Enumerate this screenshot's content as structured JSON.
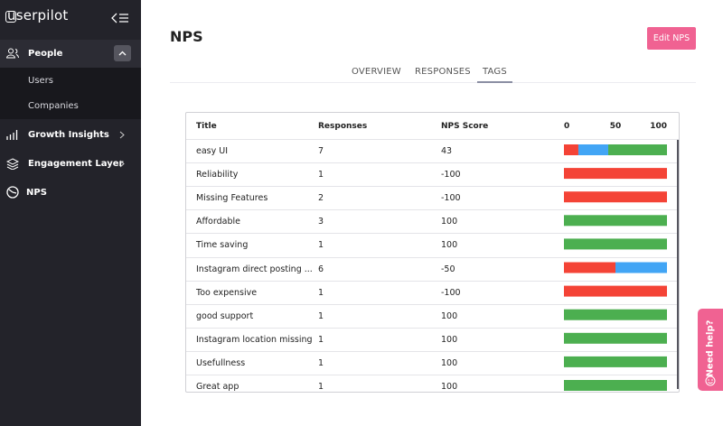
{
  "sidebar": {
    "logo": "userpilot",
    "items": [
      "People",
      "Users",
      "Companies",
      "Growth Insights",
      "Engagement Layer",
      "NPS"
    ]
  },
  "header": {
    "title": "NPS",
    "button": "Edit NPS"
  },
  "tabs": [
    "OVERVIEW",
    "RESPONSES",
    "TAGS"
  ],
  "active_tab": 2,
  "table": {
    "columns": [
      "Title",
      "Responses",
      "NPS Score"
    ],
    "scale_ticks": [
      0,
      50,
      100
    ],
    "segment_colors": [
      "#f44336",
      "#42a5f5",
      "#4caf50"
    ],
    "rows": [
      {
        "title": "easy UI",
        "responses": 7,
        "nps": 43,
        "breakdown": [
          14,
          29,
          57
        ]
      },
      {
        "title": "Reliability",
        "responses": 1,
        "nps": -100,
        "breakdown": [
          100,
          0,
          0
        ]
      },
      {
        "title": "Missing Features",
        "responses": 2,
        "nps": -100,
        "breakdown": [
          100,
          0,
          0
        ]
      },
      {
        "title": "Affordable",
        "responses": 3,
        "nps": 100,
        "breakdown": [
          0,
          0,
          100
        ]
      },
      {
        "title": "Time saving",
        "responses": 1,
        "nps": 100,
        "breakdown": [
          0,
          0,
          100
        ]
      },
      {
        "title": "Instagram direct posting ...",
        "responses": 6,
        "nps": -50,
        "breakdown": [
          50,
          50,
          0
        ]
      },
      {
        "title": "Too expensive",
        "responses": 1,
        "nps": -100,
        "breakdown": [
          100,
          0,
          0
        ]
      },
      {
        "title": "good support",
        "responses": 1,
        "nps": 100,
        "breakdown": [
          0,
          0,
          100
        ]
      },
      {
        "title": "Instagram location missing",
        "responses": 1,
        "nps": 100,
        "breakdown": [
          0,
          0,
          100
        ]
      },
      {
        "title": "Usefullness",
        "responses": 1,
        "nps": 100,
        "breakdown": [
          0,
          0,
          100
        ]
      },
      {
        "title": "Great app",
        "responses": 1,
        "nps": 100,
        "breakdown": [
          0,
          0,
          100
        ]
      }
    ]
  },
  "help": "Need help?"
}
